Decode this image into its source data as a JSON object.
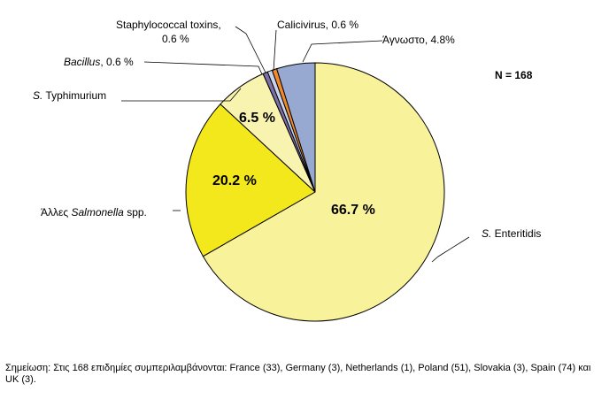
{
  "chart_data": {
    "type": "pie",
    "n_label": "N = 168",
    "slices": [
      {
        "name": "S. Enteritidis",
        "value": 66.7,
        "color": "#f8f29a",
        "data_label": "66.7 %"
      },
      {
        "name": "Άλλες Salmonella spp.",
        "value": 20.2,
        "color": "#f3e81b",
        "data_label": "20.2 %"
      },
      {
        "name": "S. Typhimurium",
        "value": 6.5,
        "color": "#f9f3b0",
        "data_label": "6.5 %"
      },
      {
        "name": "Bacillus",
        "value": 0.6,
        "color": "#7b6fa6",
        "data_label": "0.6 %"
      },
      {
        "name": "Staphylococcal toxins",
        "value": 0.6,
        "color": "#c8d4ec",
        "data_label": "0.6 %"
      },
      {
        "name": "Calicivirus",
        "value": 0.6,
        "color": "#f08a2c",
        "data_label": "0.6 %"
      },
      {
        "name": "Άγνωστο",
        "value": 4.8,
        "color": "#97a9d1",
        "data_label": "4.8%"
      }
    ]
  },
  "labels": {
    "enteritidis_italic": "S.",
    "enteritidis_rest": " Enteritidis",
    "other_salmonella_pre": "Άλλες ",
    "other_salmonella_italic": "Salmonella",
    "other_salmonella_post": " spp.",
    "typhimurium_italic": "S.",
    "typhimurium_rest": " Typhimurium",
    "bacillus_italic": "Bacillus",
    "bacillus_rest": ", 0.6 %",
    "staph_line1": "Staphylococcal toxins,",
    "staph_line2": "0.6 %",
    "calicivirus": "Calicivirus, 0.6 %",
    "unknown": "Άγνωστο, 4.8%",
    "pct_enteritidis": "66.7 %",
    "pct_other_salmonella": "20.2 %",
    "pct_typhimurium": "6.5 %"
  },
  "note": {
    "text": "Σημείωση: Στις 168 επιδημίες συμπεριλαμβάνονται: France (33), Germany (3), Netherlands (1), Poland (51), Slovakia (3), Spain (74) και UK (3)."
  }
}
